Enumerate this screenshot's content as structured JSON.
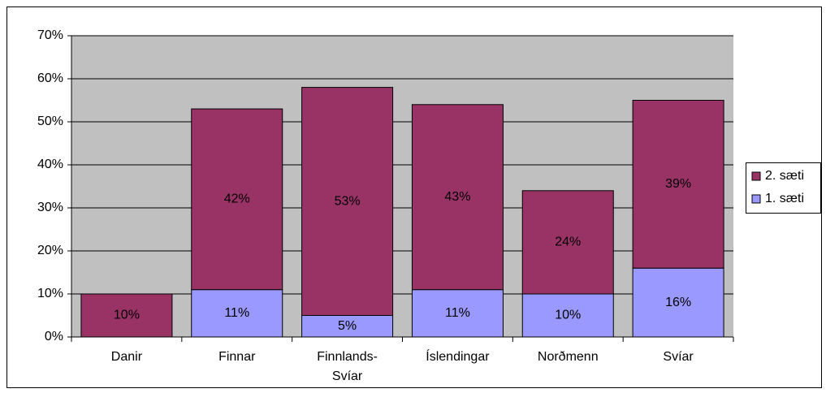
{
  "chart_data": {
    "type": "stacked_bar",
    "categories": [
      "Danir",
      "Finnar",
      "Finnlands-Svíar",
      "Íslendingar",
      "Norðmenn",
      "Svíar"
    ],
    "series": [
      {
        "name": "1. sæti",
        "color": "#9999ff",
        "values": [
          null,
          11,
          5,
          11,
          10,
          16
        ],
        "value_labels": [
          null,
          "11%",
          "5%",
          "11%",
          "10%",
          "16%"
        ]
      },
      {
        "name": "2. sæti",
        "color": "#993366",
        "values": [
          10,
          42,
          53,
          43,
          24,
          39
        ],
        "value_labels": [
          "10%",
          "42%",
          "53%",
          "43%",
          "24%",
          "39%"
        ]
      }
    ],
    "ylim": [
      0,
      70
    ],
    "yticks": [
      {
        "value": 0,
        "label": "0%"
      },
      {
        "value": 10,
        "label": "10%"
      },
      {
        "value": 20,
        "label": "20%"
      },
      {
        "value": 30,
        "label": "30%"
      },
      {
        "value": 40,
        "label": "40%"
      },
      {
        "value": 50,
        "label": "50%"
      },
      {
        "value": 60,
        "label": "60%"
      },
      {
        "value": 70,
        "label": "70%"
      }
    ],
    "grid": true,
    "legend": "right"
  }
}
